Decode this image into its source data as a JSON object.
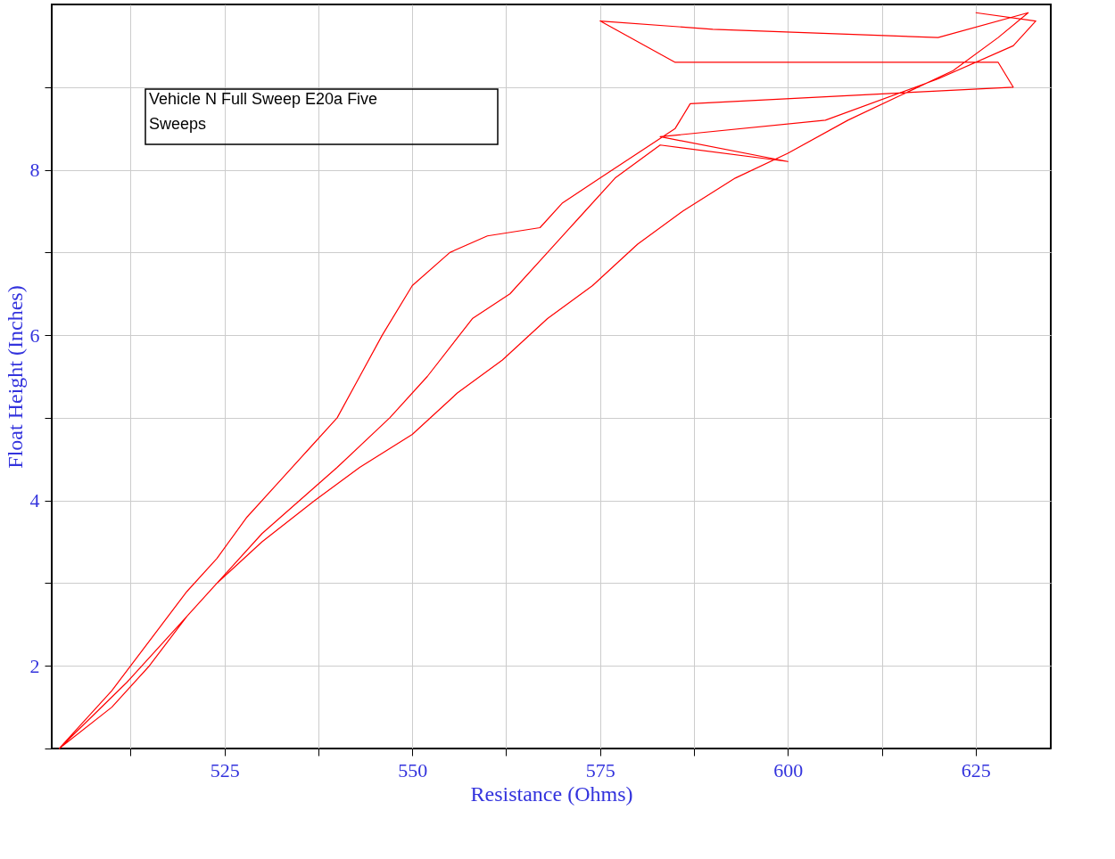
{
  "chart_data": {
    "type": "line",
    "xlabel": "Resistance (Ohms)",
    "ylabel": "Float Height (Inches)",
    "annotations": [
      "Vehicle N Full Sweep E20a Five Sweeps"
    ],
    "xlim": [
      502,
      635
    ],
    "ylim": [
      1,
      10
    ],
    "xticks": [
      {
        "value": 512.5,
        "label": null
      },
      525,
      {
        "value": 537.5,
        "label": null
      },
      550,
      {
        "value": 562.5,
        "label": null
      },
      575,
      {
        "value": 587.5,
        "label": null
      },
      600,
      {
        "value": 612.5,
        "label": null
      },
      625
    ],
    "yticks": [
      {
        "value": 1,
        "label": null
      },
      2,
      {
        "value": 3,
        "label": null
      },
      4,
      {
        "value": 5,
        "label": null
      },
      6,
      {
        "value": 7,
        "label": null
      },
      8,
      {
        "value": 9,
        "label": null
      }
    ],
    "grid": true,
    "legend": false,
    "marker": "none",
    "line_style": "solid",
    "series": [
      {
        "color": "#ff0000",
        "x": [
          503,
          510,
          515,
          520,
          524,
          530,
          537,
          543,
          550,
          556,
          562,
          568,
          574,
          580,
          586,
          593,
          600,
          608,
          615,
          622,
          628,
          632,
          620,
          590,
          575,
          585,
          628,
          630,
          587,
          585,
          580,
          575,
          570,
          567,
          560,
          555,
          550,
          546,
          543,
          540,
          536,
          532,
          528,
          524,
          520,
          515,
          510,
          505,
          503,
          512,
          520,
          530,
          540,
          547,
          552,
          558,
          563,
          568,
          572,
          577,
          583,
          600,
          583,
          605,
          620,
          630,
          633,
          625
        ],
        "values": [
          1.0,
          1.5,
          2.0,
          2.6,
          3.0,
          3.5,
          4.0,
          4.4,
          4.8,
          5.3,
          5.7,
          6.2,
          6.6,
          7.1,
          7.5,
          7.9,
          8.2,
          8.6,
          8.9,
          9.2,
          9.6,
          9.9,
          9.6,
          9.7,
          9.8,
          9.3,
          9.3,
          9.0,
          8.8,
          8.5,
          8.2,
          7.9,
          7.6,
          7.3,
          7.2,
          7.0,
          6.6,
          6.0,
          5.5,
          5.0,
          4.6,
          4.2,
          3.8,
          3.3,
          2.9,
          2.3,
          1.7,
          1.2,
          1.0,
          1.8,
          2.6,
          3.6,
          4.4,
          5.0,
          5.5,
          6.2,
          6.5,
          7.0,
          7.4,
          7.9,
          8.3,
          8.1,
          8.4,
          8.6,
          9.1,
          9.5,
          9.8,
          9.9
        ]
      }
    ]
  }
}
